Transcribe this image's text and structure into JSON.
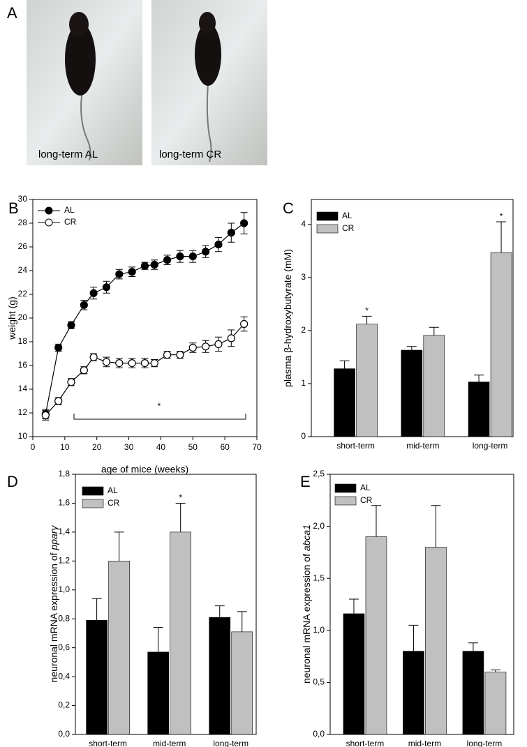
{
  "photos": {
    "panel": "A",
    "captions": [
      "long-term AL",
      "long-term CR"
    ]
  },
  "chart_data": [
    {
      "type": "line",
      "panel": "B",
      "xlabel": "age of mice (weeks)",
      "ylabel": "weight (g)",
      "x": [
        4,
        8,
        12,
        16,
        19,
        23,
        27,
        31,
        35,
        38,
        42,
        46,
        50,
        54,
        58,
        62,
        66
      ],
      "series": [
        {
          "name": "AL",
          "color": "#000000",
          "fill": "#000000",
          "values": [
            11.9,
            17.5,
            19.4,
            21.1,
            22.1,
            22.6,
            23.7,
            23.9,
            24.4,
            24.5,
            24.9,
            25.2,
            25.2,
            25.6,
            26.2,
            27.2,
            28.0
          ],
          "errors": [
            0.4,
            0.3,
            0.3,
            0.4,
            0.5,
            0.5,
            0.4,
            0.4,
            0.3,
            0.4,
            0.4,
            0.5,
            0.5,
            0.5,
            0.6,
            0.8,
            0.9
          ]
        },
        {
          "name": "CR",
          "color": "#000000",
          "fill": "#ffffff",
          "values": [
            11.8,
            13.0,
            14.6,
            15.6,
            16.7,
            16.3,
            16.2,
            16.2,
            16.2,
            16.2,
            16.9,
            16.9,
            17.5,
            17.6,
            17.8,
            18.3,
            19.5
          ],
          "errors": [
            0.4,
            0.3,
            0.3,
            0.3,
            0.3,
            0.4,
            0.4,
            0.4,
            0.4,
            0.3,
            0.3,
            0.3,
            0.4,
            0.5,
            0.6,
            0.7,
            0.6
          ]
        }
      ],
      "annotations": [
        "*"
      ],
      "xlim": [
        0,
        70
      ],
      "xticks": [
        0,
        10,
        20,
        30,
        40,
        50,
        60,
        70
      ],
      "ylim": [
        10,
        30
      ],
      "yticks": [
        10,
        12,
        14,
        16,
        18,
        20,
        22,
        24,
        26,
        28,
        30
      ],
      "legend": "upper left"
    },
    {
      "type": "bar",
      "panel": "C",
      "ylabel": "plasma β-hydroxybutyrate (mM)",
      "categories": [
        "short-term",
        "mid-term",
        "long-term"
      ],
      "series": [
        {
          "name": "AL",
          "color": "#000000",
          "values": [
            1.28,
            1.63,
            1.03
          ],
          "errors": [
            0.15,
            0.07,
            0.13
          ]
        },
        {
          "name": "CR",
          "color": "#c0c0c0",
          "values": [
            2.12,
            1.91,
            3.47
          ],
          "errors": [
            0.15,
            0.15,
            0.58
          ]
        }
      ],
      "annotations": [
        "*",
        "*"
      ],
      "ylim": [
        0,
        4.47
      ],
      "yticks": [
        0,
        1,
        2,
        3,
        4
      ],
      "legend": "upper left"
    },
    {
      "type": "bar",
      "panel": "D",
      "ylabel": "neuronal mRNA expression of",
      "ylabel_italic": "pparγ",
      "categories": [
        "short-term",
        "mid-term",
        "long-term"
      ],
      "series": [
        {
          "name": "AL",
          "color": "#000000",
          "values": [
            0.79,
            0.57,
            0.81
          ],
          "errors": [
            0.15,
            0.17,
            0.08
          ]
        },
        {
          "name": "CR",
          "color": "#c0c0c0",
          "values": [
            1.2,
            1.4,
            0.71
          ],
          "errors": [
            0.2,
            0.2,
            0.14
          ]
        }
      ],
      "annotations": [
        "*"
      ],
      "ylim": [
        0,
        1.8
      ],
      "yticks": [
        {
          "value": 0,
          "label": "0,0"
        },
        {
          "value": 0.2,
          "label": "0,2"
        },
        {
          "value": 0.4,
          "label": "0,4"
        },
        {
          "value": 0.6,
          "label": "0,6"
        },
        {
          "value": 0.8,
          "label": "0,8"
        },
        {
          "value": 1.0,
          "label": "1,0"
        },
        {
          "value": 1.2,
          "label": "1,2"
        },
        {
          "value": 1.4,
          "label": "1,4"
        },
        {
          "value": 1.6,
          "label": "1,6"
        },
        {
          "value": 1.8,
          "label": "1,8"
        }
      ],
      "legend": "upper left"
    },
    {
      "type": "bar",
      "panel": "E",
      "ylabel": "neuronal mRNA expression of",
      "ylabel_italic": "abca1",
      "categories": [
        "short-term",
        "mid-term",
        "long-term"
      ],
      "series": [
        {
          "name": "AL",
          "color": "#000000",
          "values": [
            1.16,
            0.8,
            0.8
          ],
          "errors": [
            0.14,
            0.25,
            0.08
          ]
        },
        {
          "name": "CR",
          "color": "#c0c0c0",
          "values": [
            1.9,
            1.8,
            0.6
          ],
          "errors": [
            0.3,
            0.4,
            0.02
          ]
        }
      ],
      "ylim": [
        0,
        2.5
      ],
      "yticks": [
        {
          "value": 0,
          "label": "0,0"
        },
        {
          "value": 0.5,
          "label": "0,5"
        },
        {
          "value": 1.0,
          "label": "1,0"
        },
        {
          "value": 1.5,
          "label": "1,5"
        },
        {
          "value": 2.0,
          "label": "2,0"
        },
        {
          "value": 2.5,
          "label": "2,5"
        }
      ],
      "legend": "upper left"
    }
  ]
}
